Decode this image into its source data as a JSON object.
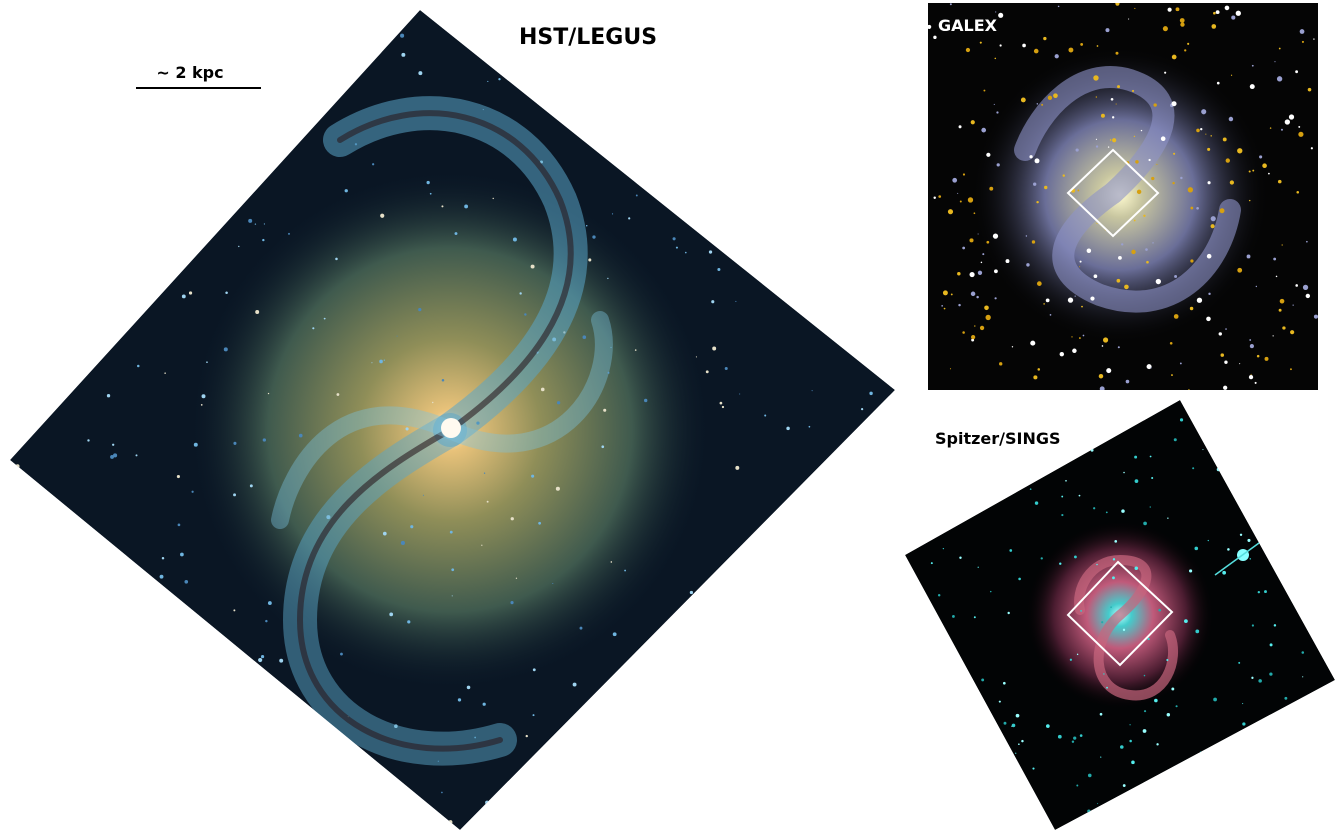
{
  "panels": {
    "main": {
      "title": "HST/LEGUS",
      "scale_label": "~ 2 kpc"
    },
    "galex": {
      "title": "GALEX"
    },
    "spitzer": {
      "title": "Spitzer/SINGS"
    }
  }
}
